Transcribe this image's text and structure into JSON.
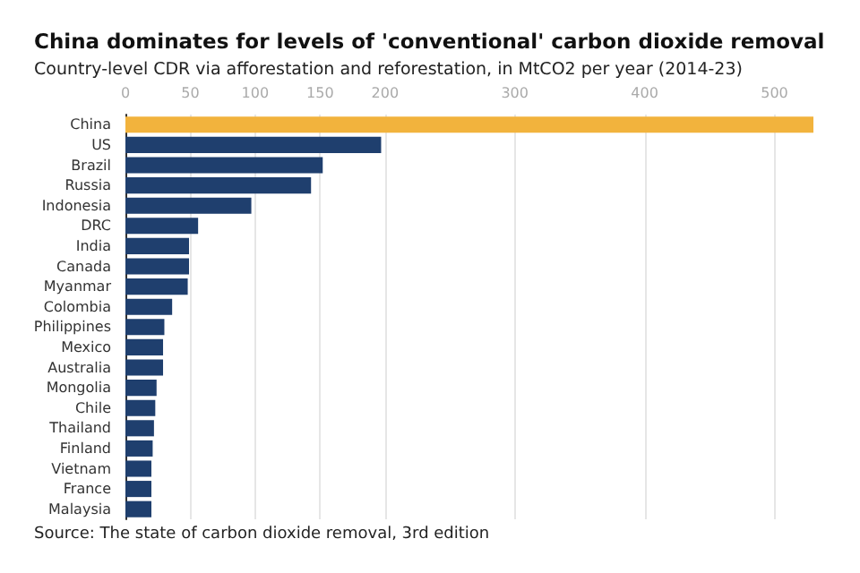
{
  "chart_data": {
    "type": "bar",
    "orientation": "horizontal",
    "title": "China dominates for levels of 'conventional' carbon dioxide removal",
    "subtitle": "Country-level CDR via afforestation and reforestation, in MtCO2 per year (2014-23)",
    "categories": [
      "China",
      "US",
      "Brazil",
      "Russia",
      "Indonesia",
      "DRC",
      "India",
      "Canada",
      "Myanmar",
      "Colombia",
      "Philippines",
      "Mexico",
      "Australia",
      "Mongolia",
      "Chile",
      "Thailand",
      "Finland",
      "Vietnam",
      "France",
      "Malaysia"
    ],
    "values": [
      530,
      197,
      152,
      143,
      97,
      56,
      49,
      49,
      48,
      36,
      30,
      29,
      29,
      24,
      23,
      22,
      21,
      20,
      20,
      20
    ],
    "colors": [
      "#f2b33d",
      "#1f3f6e",
      "#1f3f6e",
      "#1f3f6e",
      "#1f3f6e",
      "#1f3f6e",
      "#1f3f6e",
      "#1f3f6e",
      "#1f3f6e",
      "#1f3f6e",
      "#1f3f6e",
      "#1f3f6e",
      "#1f3f6e",
      "#1f3f6e",
      "#1f3f6e",
      "#1f3f6e",
      "#1f3f6e",
      "#1f3f6e",
      "#1f3f6e",
      "#1f3f6e"
    ],
    "xlim": [
      0,
      530
    ],
    "xticks": [
      0,
      50,
      100,
      150,
      200,
      300,
      400,
      500
    ],
    "grid": "x",
    "annotations": [
      "Source: The state of carbon dioxide removal, 3rd edition"
    ]
  }
}
